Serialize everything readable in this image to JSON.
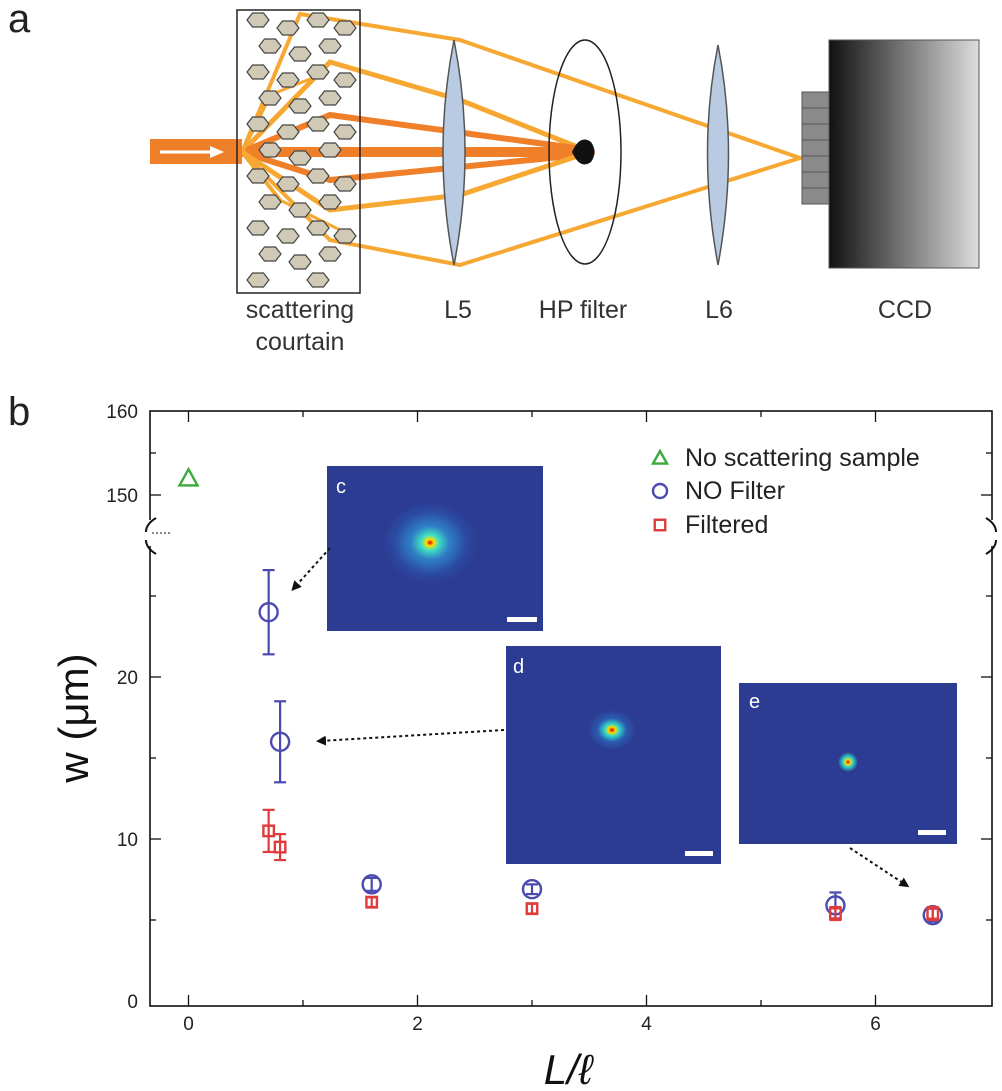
{
  "panel_a": {
    "letter": "a",
    "labels": {
      "curtain_line1": "scattering",
      "curtain_line2": "courtain",
      "lens1": "L5",
      "filter": "HP filter",
      "lens2": "L6",
      "camera": "CCD"
    },
    "colors": {
      "beam": "#f07f2a",
      "ray": "#f6a833",
      "lens": "#b9cbe3",
      "particle": "#cfc9b6"
    }
  },
  "panel_b": {
    "letter": "b",
    "insets": [
      {
        "label": "c",
        "fwhm_um": 24
      },
      {
        "label": "d",
        "fwhm_um": 16
      },
      {
        "label": "e",
        "fwhm_um": 5.3
      }
    ]
  },
  "chart_data": {
    "type": "scatter",
    "xlabel": "L/ℓ",
    "ylabel": "w (μm)",
    "xlim": [
      -0.3,
      7.0
    ],
    "ylim_lower": [
      0,
      28
    ],
    "ylim_upper_segment": [
      147,
      160
    ],
    "axis_break": true,
    "x_ticks": [
      "0",
      "2",
      "4",
      "6"
    ],
    "y_ticks": [
      "0",
      "10",
      "20",
      "150",
      "160"
    ],
    "legend_position": "top-right",
    "series": [
      {
        "name": "No scattering sample",
        "marker": "triangle",
        "color": "#3aaa3a",
        "points": [
          {
            "x": 0.0,
            "y": 152
          }
        ]
      },
      {
        "name": "NO Filter",
        "marker": "circle",
        "color": "#4a4ab0",
        "points": [
          {
            "x": 0.7,
            "y": 24.0,
            "err": 2.6
          },
          {
            "x": 0.8,
            "y": 16.0,
            "err": 2.5
          },
          {
            "x": 1.6,
            "y": 7.2,
            "err": 0.4
          },
          {
            "x": 3.0,
            "y": 6.9,
            "err": 0.3
          },
          {
            "x": 5.65,
            "y": 5.9,
            "err": 0.8
          },
          {
            "x": 6.5,
            "y": 5.3,
            "err": 0.4
          }
        ]
      },
      {
        "name": "Filtered",
        "marker": "square",
        "color": "#e03a3a",
        "points": [
          {
            "x": 0.7,
            "y": 10.5,
            "err": 1.3
          },
          {
            "x": 0.8,
            "y": 9.5,
            "err": 0.8
          },
          {
            "x": 1.6,
            "y": 6.1,
            "err": 0.3
          },
          {
            "x": 3.0,
            "y": 5.7,
            "err": 0.3
          },
          {
            "x": 5.65,
            "y": 5.4,
            "err": 0.4
          },
          {
            "x": 6.5,
            "y": 5.4,
            "err": 0.4
          }
        ]
      }
    ]
  }
}
